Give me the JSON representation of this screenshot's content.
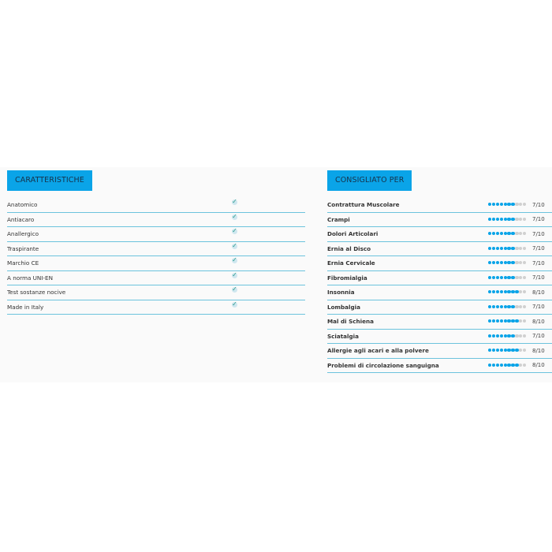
{
  "left": {
    "title": "CARATTERISTICHE",
    "items": [
      "Anatomico",
      "Antiacaro",
      "Anallergico",
      "Traspirante",
      "Marchio CE",
      "A norma UNI-EN",
      "Test sostanze nocive",
      "Made in Italy"
    ]
  },
  "right": {
    "title": "CONSIGLIATO PER",
    "items": [
      {
        "label": "Contrattura Muscolare",
        "score": 7,
        "text": "7/10"
      },
      {
        "label": "Crampi",
        "score": 7,
        "text": "7/10"
      },
      {
        "label": "Dolori Articolari",
        "score": 7,
        "text": "7/10"
      },
      {
        "label": "Ernia al Disco",
        "score": 7,
        "text": "7/10"
      },
      {
        "label": "Ernia Cervicale",
        "score": 7,
        "text": "7/10"
      },
      {
        "label": "Fibromialgia",
        "score": 7,
        "text": "7/10"
      },
      {
        "label": "Insonnia",
        "score": 8,
        "text": "8/10"
      },
      {
        "label": "Lombalgia",
        "score": 7,
        "text": "7/10"
      },
      {
        "label": "Mal di Schiena",
        "score": 8,
        "text": "8/10"
      },
      {
        "label": "Sciatalgia",
        "score": 7,
        "text": "7/10"
      },
      {
        "label": "Allergie agli acari e alla polvere",
        "score": 8,
        "text": "8/10"
      },
      {
        "label": "Problemi di circolazione sanguigna",
        "score": 8,
        "text": "8/10"
      }
    ]
  },
  "colors": {
    "accent": "#0aa4e8",
    "divider": "#6cc3dd"
  }
}
